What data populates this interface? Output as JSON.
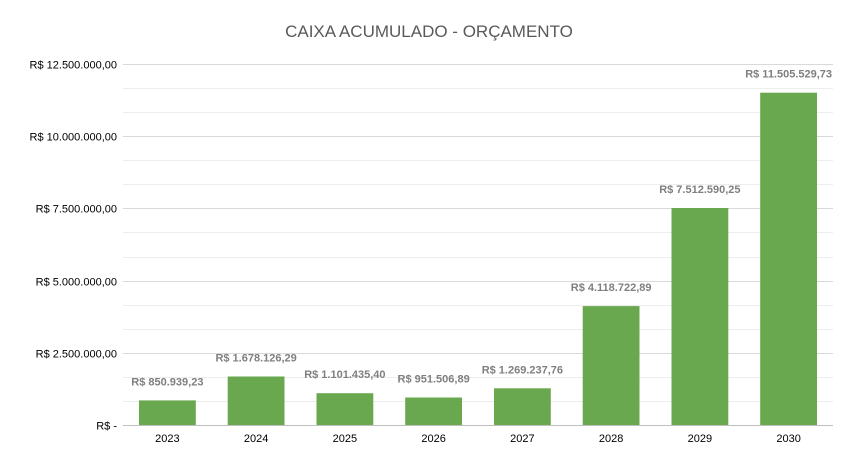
{
  "chart_data": {
    "type": "bar",
    "title": "CAIXA ACUMULADO - ORÇAMENTO",
    "xlabel": "",
    "ylabel": "",
    "categories": [
      "2023",
      "2024",
      "2025",
      "2026",
      "2027",
      "2028",
      "2029",
      "2030"
    ],
    "values": [
      850939.23,
      1678126.29,
      1101435.4,
      951506.89,
      1269237.76,
      4118722.89,
      7512590.25,
      11505529.73
    ],
    "data_labels": [
      "R$  850.939,23",
      "R$  1.678.126,29",
      "R$  1.101.435,40",
      "R$  951.506,89",
      "R$  1.269.237,76",
      "R$  4.118.722,89",
      "R$  7.512.590,25",
      "R$  11.505.529,73"
    ],
    "ylim": [
      0,
      12500000
    ],
    "yticks": [
      0,
      2500000,
      5000000,
      7500000,
      10000000,
      12500000
    ],
    "ytick_labels": [
      "R$  -",
      "R$  2.500.000,00",
      "R$  5.000.000,00",
      "R$  7.500.000,00",
      "R$  10.000.000,00",
      "R$  12.500.000,00"
    ],
    "minor_grid_step": 833333.33,
    "grid": true,
    "legend": "none",
    "colors": {
      "bar": "#6aa84f",
      "bar_alt": "#70ad47"
    }
  }
}
